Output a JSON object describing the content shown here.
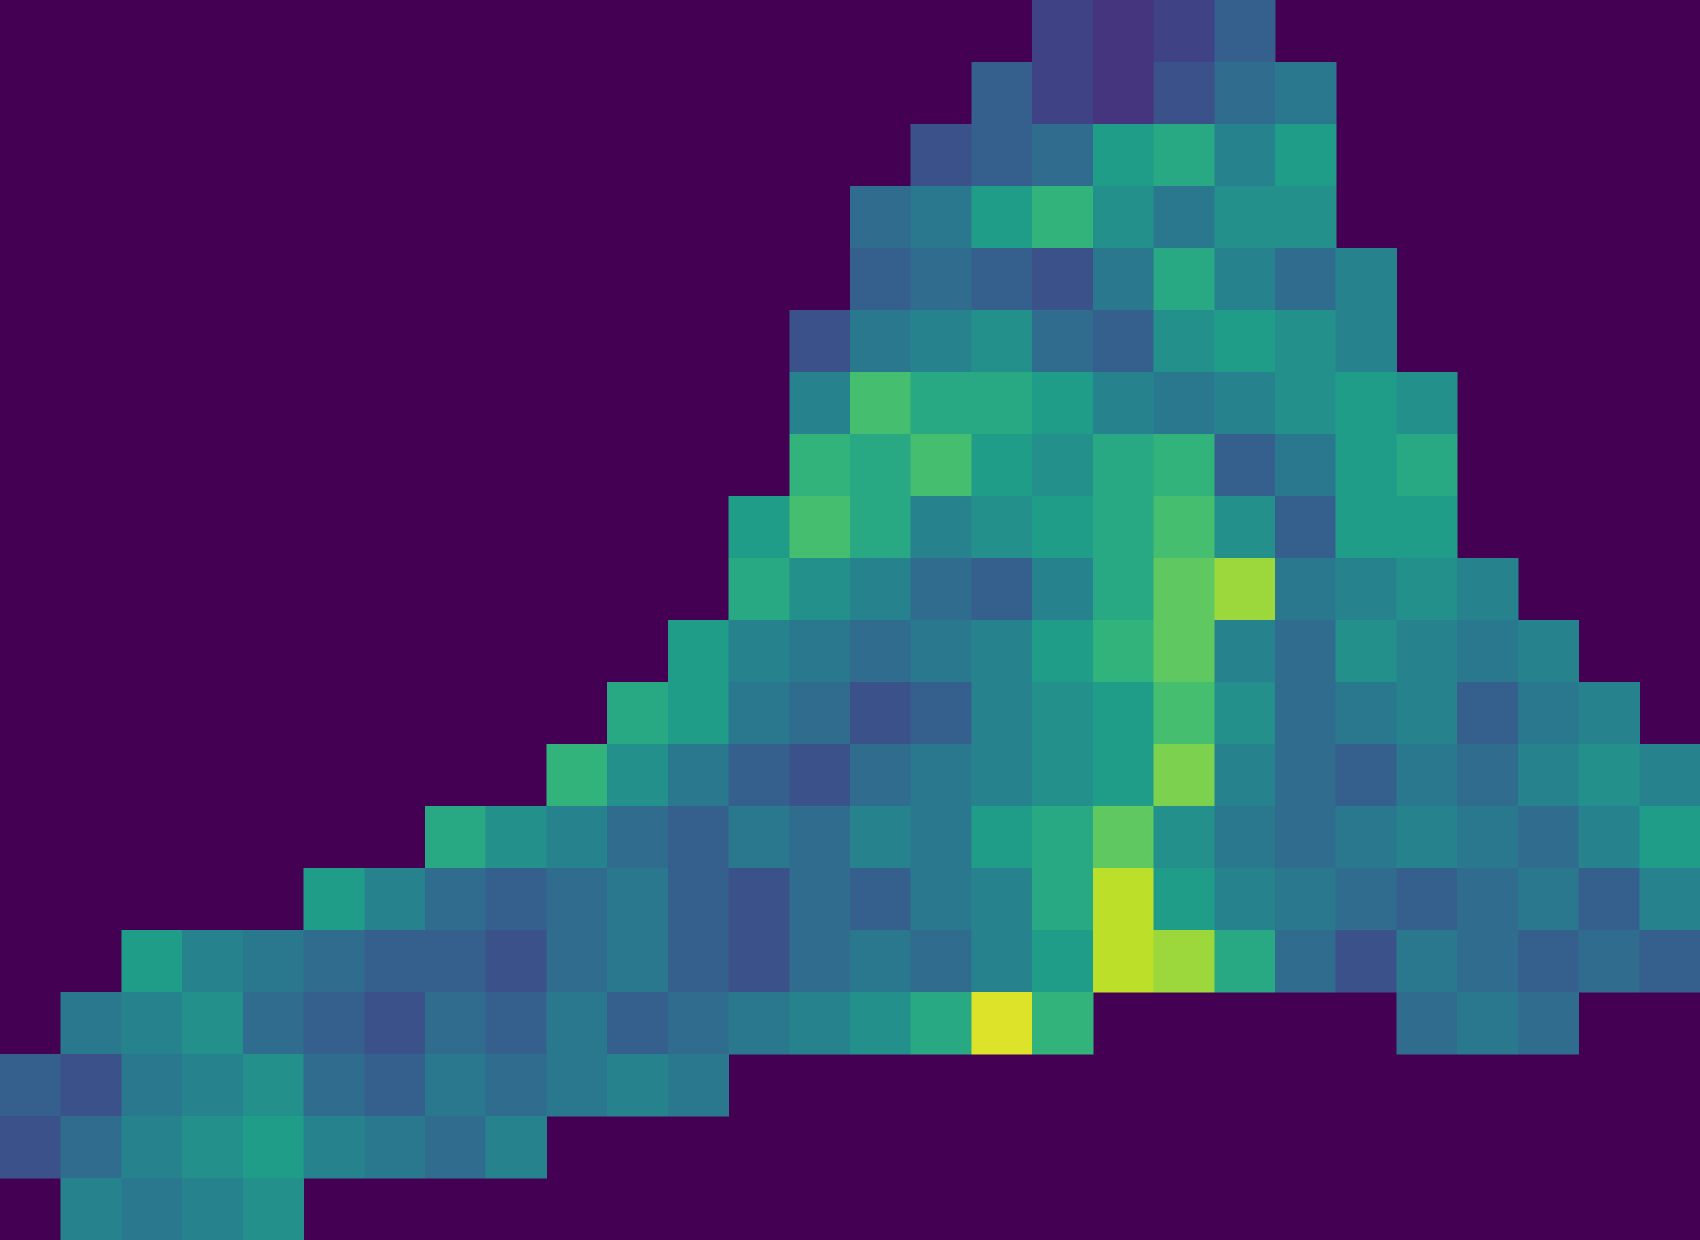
{
  "chart_data": {
    "type": "heatmap",
    "background": "#440154",
    "zlim": [
      0,
      100
    ],
    "colorscale": [
      "#440154",
      "#482878",
      "#3e4989",
      "#31688e",
      "#26828e",
      "#1f9e89",
      "#35b779",
      "#6ece58",
      "#b5de2b",
      "#fde725"
    ],
    "values": [
      [
        null,
        null,
        null,
        null,
        null,
        null,
        null,
        null,
        null,
        null,
        null,
        null,
        null,
        null,
        null,
        null,
        null,
        20,
        15,
        20,
        30,
        null,
        null,
        null,
        null,
        null,
        null,
        null
      ],
      [
        null,
        null,
        null,
        null,
        null,
        null,
        null,
        null,
        null,
        null,
        null,
        null,
        null,
        null,
        null,
        null,
        30,
        20,
        15,
        25,
        35,
        40,
        null,
        null,
        null,
        null,
        null,
        null
      ],
      [
        null,
        null,
        null,
        null,
        null,
        null,
        null,
        null,
        null,
        null,
        null,
        null,
        null,
        null,
        null,
        25,
        30,
        35,
        55,
        60,
        45,
        55,
        null,
        null,
        null,
        null,
        null,
        null
      ],
      [
        null,
        null,
        null,
        null,
        null,
        null,
        null,
        null,
        null,
        null,
        null,
        null,
        null,
        null,
        35,
        40,
        55,
        65,
        50,
        40,
        50,
        50,
        null,
        null,
        null,
        null,
        null,
        null
      ],
      [
        null,
        null,
        null,
        null,
        null,
        null,
        null,
        null,
        null,
        null,
        null,
        null,
        null,
        null,
        30,
        35,
        30,
        25,
        40,
        60,
        45,
        35,
        45,
        null,
        null,
        null,
        null,
        null
      ],
      [
        null,
        null,
        null,
        null,
        null,
        null,
        null,
        null,
        null,
        null,
        null,
        null,
        null,
        25,
        40,
        45,
        50,
        35,
        30,
        50,
        55,
        50,
        45,
        null,
        null,
        null,
        null,
        null
      ],
      [
        null,
        null,
        null,
        null,
        null,
        null,
        null,
        null,
        null,
        null,
        null,
        null,
        null,
        45,
        70,
        60,
        60,
        55,
        45,
        40,
        45,
        50,
        55,
        50,
        null,
        null,
        null,
        null
      ],
      [
        null,
        null,
        null,
        null,
        null,
        null,
        null,
        null,
        null,
        null,
        null,
        null,
        null,
        65,
        60,
        70,
        55,
        50,
        60,
        65,
        30,
        40,
        55,
        60,
        null,
        null,
        null,
        null
      ],
      [
        null,
        null,
        null,
        null,
        null,
        null,
        null,
        null,
        null,
        null,
        null,
        null,
        55,
        70,
        60,
        45,
        50,
        55,
        60,
        70,
        50,
        30,
        55,
        55,
        null,
        null,
        null,
        null
      ],
      [
        null,
        null,
        null,
        null,
        null,
        null,
        null,
        null,
        null,
        null,
        null,
        null,
        60,
        50,
        45,
        35,
        30,
        45,
        60,
        75,
        85,
        40,
        45,
        50,
        45,
        null,
        null,
        null
      ],
      [
        null,
        null,
        null,
        null,
        null,
        null,
        null,
        null,
        null,
        null,
        null,
        55,
        45,
        40,
        35,
        40,
        45,
        55,
        65,
        75,
        45,
        35,
        50,
        45,
        40,
        45,
        null,
        null
      ],
      [
        null,
        null,
        null,
        null,
        null,
        null,
        null,
        null,
        null,
        null,
        60,
        55,
        40,
        35,
        25,
        30,
        45,
        50,
        55,
        70,
        50,
        35,
        40,
        45,
        30,
        40,
        45,
        null
      ],
      [
        null,
        null,
        null,
        null,
        null,
        null,
        null,
        null,
        null,
        65,
        50,
        40,
        30,
        25,
        35,
        40,
        45,
        50,
        55,
        80,
        45,
        35,
        30,
        40,
        35,
        45,
        50,
        45
      ],
      [
        null,
        null,
        null,
        null,
        null,
        null,
        null,
        60,
        50,
        45,
        35,
        30,
        40,
        35,
        45,
        40,
        55,
        60,
        75,
        50,
        40,
        35,
        40,
        45,
        40,
        35,
        45,
        55
      ],
      [
        null,
        null,
        null,
        null,
        null,
        55,
        45,
        35,
        30,
        35,
        40,
        30,
        25,
        35,
        30,
        40,
        45,
        60,
        90,
        55,
        45,
        40,
        35,
        30,
        35,
        40,
        30,
        45
      ],
      [
        null,
        null,
        55,
        45,
        40,
        35,
        30,
        30,
        25,
        35,
        40,
        30,
        25,
        35,
        40,
        35,
        45,
        55,
        90,
        85,
        60,
        35,
        25,
        40,
        35,
        30,
        35,
        30
      ],
      [
        null,
        40,
        45,
        50,
        35,
        30,
        25,
        35,
        30,
        40,
        30,
        35,
        40,
        45,
        50,
        60,
        95,
        65,
        null,
        null,
        null,
        null,
        null,
        35,
        40,
        35,
        null,
        null
      ],
      [
        30,
        25,
        40,
        45,
        50,
        35,
        30,
        40,
        35,
        40,
        45,
        40,
        null,
        null,
        null,
        null,
        null,
        null,
        null,
        null,
        null,
        null,
        null,
        null,
        null,
        null,
        null,
        null
      ],
      [
        25,
        35,
        45,
        50,
        55,
        45,
        40,
        35,
        45,
        null,
        null,
        null,
        null,
        null,
        null,
        null,
        null,
        null,
        null,
        null,
        null,
        null,
        null,
        null,
        null,
        null,
        null,
        null
      ],
      [
        null,
        45,
        40,
        45,
        50,
        null,
        null,
        null,
        null,
        null,
        null,
        null,
        null,
        null,
        null,
        null,
        null,
        null,
        null,
        null,
        null,
        null,
        null,
        null,
        null,
        null,
        null,
        null
      ]
    ]
  }
}
